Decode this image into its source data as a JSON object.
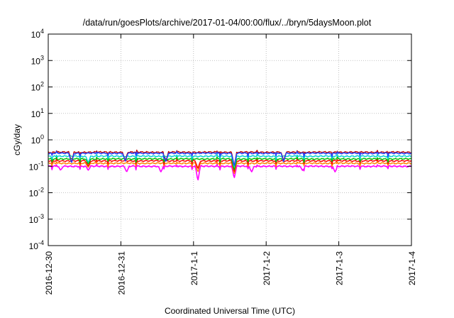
{
  "chart_data": {
    "type": "line",
    "title": "/data/run/goesPlots/archive/2017-01-04/00:00/flux/../bryn/5daysMoon.plot",
    "xlabel": "Coordinated Universal Time (UTC)",
    "ylabel": "cGy/day",
    "yscale": "log",
    "ylim": [
      0.0001,
      10000
    ],
    "y_ticks": [
      {
        "value": 0.0001,
        "base": "10",
        "exp": "-4"
      },
      {
        "value": 0.001,
        "base": "10",
        "exp": "-3"
      },
      {
        "value": 0.01,
        "base": "10",
        "exp": "-2"
      },
      {
        "value": 0.1,
        "base": "10",
        "exp": "-1"
      },
      {
        "value": 1,
        "base": "10",
        "exp": "0"
      },
      {
        "value": 10,
        "base": "10",
        "exp": "1"
      },
      {
        "value": 100,
        "base": "10",
        "exp": "2"
      },
      {
        "value": 1000,
        "base": "10",
        "exp": "3"
      },
      {
        "value": 10000,
        "base": "10",
        "exp": "4"
      }
    ],
    "x_ticks": [
      "2016-12-30",
      "2016-12-31",
      "2017-1-1",
      "2017-1-2",
      "2017-1-3",
      "2017-1-4"
    ],
    "xlim": [
      "2016-12-30",
      "2017-1-4"
    ],
    "grid": true,
    "legend": "none",
    "series": [
      {
        "color": "#ff00ff",
        "base": 0.1,
        "dips": [
          [
            0.17,
            0.07
          ],
          [
            0.55,
            0.07
          ],
          [
            1.08,
            0.06
          ],
          [
            1.55,
            0.06
          ],
          [
            2.06,
            0.028
          ],
          [
            2.56,
            0.035
          ],
          [
            2.8,
            0.06
          ],
          [
            3.5,
            0.07
          ],
          [
            3.95,
            0.06
          ]
        ]
      },
      {
        "color": "#ff8000",
        "base": 0.13,
        "dips": [
          [
            0.55,
            0.09
          ],
          [
            2.06,
            0.06
          ],
          [
            2.56,
            0.05
          ]
        ]
      },
      {
        "color": "#ff0000",
        "base": 0.16,
        "dips": [
          [
            0.55,
            0.1
          ],
          [
            2.06,
            0.08
          ],
          [
            2.56,
            0.06
          ]
        ]
      },
      {
        "color": "#00c000",
        "base": 0.19,
        "dips": [
          [
            0.55,
            0.12
          ],
          [
            2.56,
            0.07
          ]
        ]
      },
      {
        "color": "#00d0d0",
        "base": 0.24,
        "dips": [
          [
            0.55,
            0.14
          ],
          [
            2.56,
            0.09
          ]
        ]
      },
      {
        "color": "#c00000",
        "base": 0.34,
        "dips": [
          [
            0.32,
            0.14
          ],
          [
            1.06,
            0.16
          ],
          [
            1.62,
            0.15
          ],
          [
            2.56,
            0.1
          ],
          [
            3.24,
            0.16
          ]
        ]
      },
      {
        "color": "#2040ff",
        "base": 0.31,
        "dips": [
          [
            0.32,
            0.13
          ],
          [
            1.06,
            0.15
          ],
          [
            1.62,
            0.14
          ],
          [
            2.56,
            0.1
          ],
          [
            3.24,
            0.15
          ]
        ]
      }
    ]
  }
}
